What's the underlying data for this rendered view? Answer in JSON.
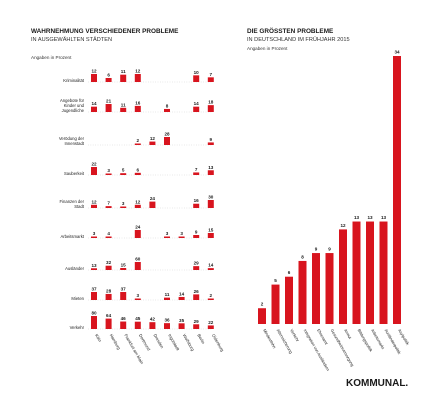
{
  "colors": {
    "accent": "#d8141e",
    "rule": "#c9c9c9",
    "text": "#1a1a1a"
  },
  "logo": "KOMMUNAL.",
  "chart_data": [
    {
      "type": "bar",
      "title": "WAHRNEHMUNG VERSCHIEDENER PROBLEME",
      "subtitle": "IN AUSGEWÄHLTEN STÄDTEN",
      "unit_note": "Angaben in Prozent",
      "columns": [
        "Köln",
        "Hamburg",
        "Frankfurt am Main",
        "Dortmund",
        "Dresden",
        "Ingolstadt",
        "Wolfsburg",
        "Berlin",
        "Oldenburg"
      ],
      "rows": [
        {
          "name": "Kriminalität",
          "values": [
            12,
            6,
            11,
            12,
            null,
            null,
            null,
            10,
            7
          ]
        },
        {
          "name": "Angebote für Kinder und Jugendliche",
          "values": [
            14,
            21,
            11,
            16,
            null,
            8,
            null,
            14,
            18
          ]
        },
        {
          "name": "Verödung der Innenstadt",
          "values": [
            null,
            null,
            null,
            2,
            12,
            28,
            null,
            null,
            9
          ]
        },
        {
          "name": "Sauberkeit",
          "values": [
            22,
            3,
            5,
            6,
            null,
            null,
            null,
            7,
            13
          ]
        },
        {
          "name": "Finanzen der Stadt",
          "values": [
            12,
            7,
            3,
            12,
            24,
            null,
            null,
            16,
            30
          ]
        },
        {
          "name": "Arbeitsmarkt",
          "values": [
            3,
            4,
            null,
            24,
            null,
            3,
            3,
            9,
            15
          ]
        },
        {
          "name": "Ausländer",
          "values": [
            13,
            32,
            15,
            60,
            null,
            null,
            null,
            29,
            14
          ]
        },
        {
          "name": "Mieten",
          "values": [
            37,
            28,
            37,
            3,
            null,
            11,
            14,
            26,
            2
          ]
        },
        {
          "name": "Verkehr",
          "values": [
            80,
            64,
            46,
            45,
            42,
            36,
            35,
            29,
            22
          ]
        }
      ]
    },
    {
      "type": "bar",
      "title": "DIE GRÖSSTEN PROBLEME",
      "subtitle": "IN DEUTSCHLAND IM FRÜHJAHR 2015",
      "unit_note": "Angaben in Prozent",
      "categories": [
        "Mindestlohn",
        "Alterssicherung",
        "Verkehr",
        "Integration von Ausländern",
        "Ehrenamt",
        "Gesundheitsversorgung",
        "Armut",
        "Bildungspolitik",
        "Arbeitsmarkt",
        "Ausländerpolitik",
        "Asylpolitik"
      ],
      "values": [
        2,
        5,
        6,
        8,
        9,
        9,
        12,
        13,
        13,
        13,
        34
      ]
    }
  ]
}
